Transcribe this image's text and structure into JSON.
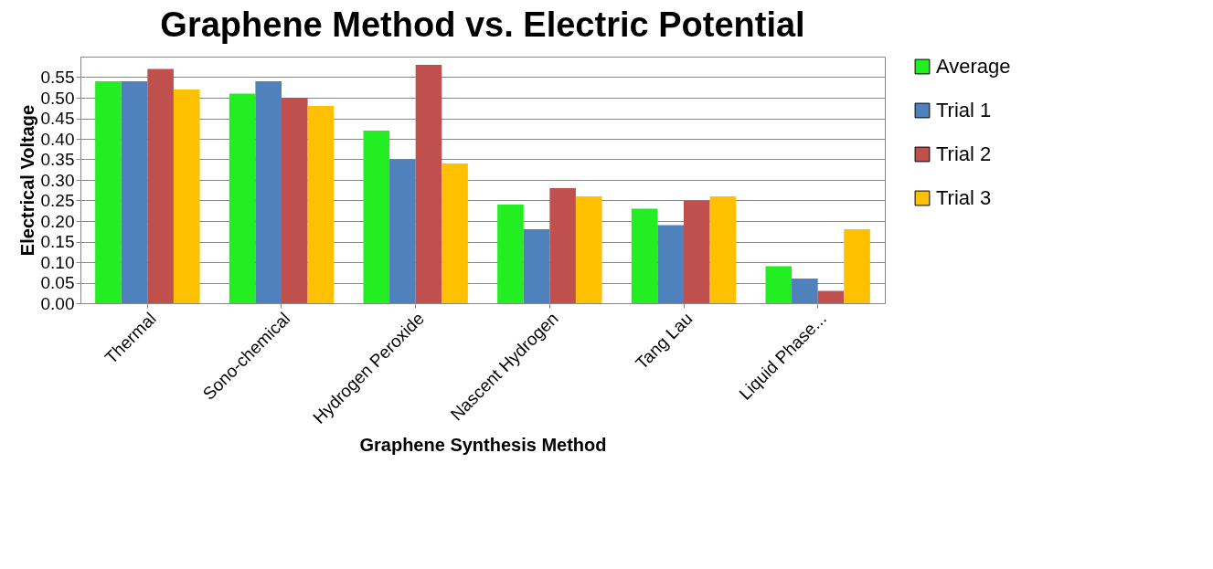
{
  "chart_data": {
    "type": "bar",
    "title": "Graphene Method vs. Electric Potential",
    "xlabel": "Graphene Synthesis Method",
    "ylabel": "Electrical Voltage",
    "categories": [
      "Thermal",
      "Sono-chemical",
      "Hydrogen Peroxide",
      "Nascent Hydrogen",
      "Tang Lau",
      "Liquid Phase..."
    ],
    "series": [
      {
        "name": "Average",
        "color": "#22ee22",
        "values": [
          0.54,
          0.51,
          0.42,
          0.24,
          0.23,
          0.09
        ]
      },
      {
        "name": "Trial 1",
        "color": "#4f81bd",
        "values": [
          0.54,
          0.54,
          0.35,
          0.18,
          0.19,
          0.06
        ]
      },
      {
        "name": "Trial 2",
        "color": "#c0504d",
        "values": [
          0.57,
          0.5,
          0.58,
          0.28,
          0.25,
          0.03
        ]
      },
      {
        "name": "Trial 3",
        "color": "#ffc000",
        "values": [
          0.52,
          0.48,
          0.34,
          0.26,
          0.26,
          0.18
        ]
      }
    ],
    "ylim": [
      0,
      0.6
    ],
    "yticks": [
      {
        "value": 0,
        "label": "0.00"
      },
      0.05,
      {
        "value": 0.1,
        "label": "0.10"
      },
      0.15,
      {
        "value": 0.2,
        "label": "0.20"
      },
      0.25,
      {
        "value": 0.3,
        "label": "0.30"
      },
      0.35,
      {
        "value": 0.4,
        "label": "0.40"
      },
      0.45,
      {
        "value": 0.5,
        "label": "0.50"
      },
      0.55
    ],
    "grid": "y",
    "legend": "right"
  }
}
